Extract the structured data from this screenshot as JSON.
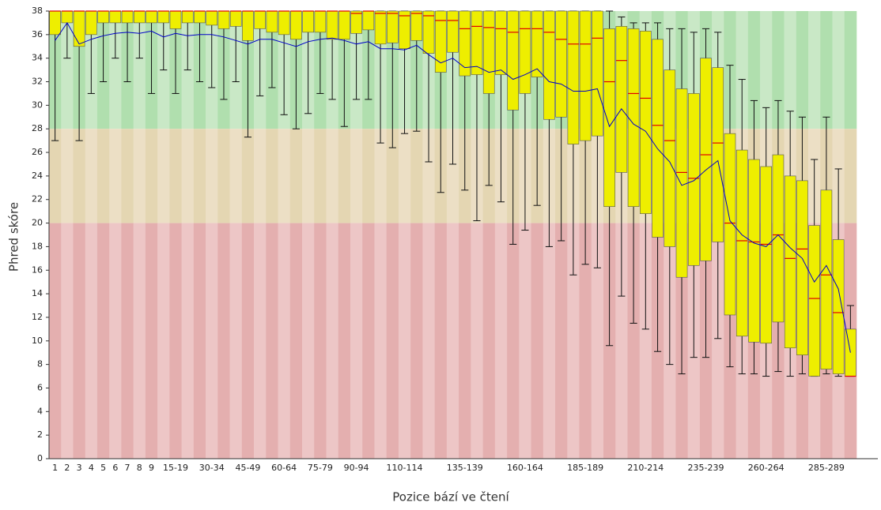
{
  "chart_data": {
    "type": "boxplot",
    "y_label": "Phred skóre",
    "x_label": "Pozice bází ve čtení",
    "categories": [
      "1",
      "2",
      "3",
      "4",
      "5",
      "6",
      "7",
      "8",
      "9",
      null,
      "15-19",
      null,
      null,
      "30-34",
      null,
      null,
      "45-49",
      null,
      null,
      "60-64",
      null,
      null,
      "75-79",
      null,
      null,
      "90-94",
      null,
      null,
      null,
      "110-114",
      null,
      null,
      null,
      null,
      "135-139",
      null,
      null,
      null,
      null,
      "160-164",
      null,
      null,
      null,
      null,
      "185-189",
      null,
      null,
      null,
      null,
      "210-214",
      null,
      null,
      null,
      null,
      "235-239",
      null,
      null,
      null,
      null,
      "260-264",
      null,
      null,
      null,
      null,
      "285-289",
      null,
      null
    ],
    "q1": [
      36,
      37,
      35,
      36,
      37,
      37,
      37,
      37,
      37,
      37,
      36.5,
      37,
      37,
      36.8,
      36.5,
      36.7,
      35.5,
      36.5,
      36.2,
      36,
      35.6,
      36.2,
      36.2,
      35.6,
      35.6,
      36.1,
      36.4,
      35.2,
      35.3,
      34.8,
      35.5,
      34.4,
      32.8,
      34.5,
      32.5,
      32.6,
      31,
      32.6,
      29.6,
      31,
      32.4,
      28.8,
      29,
      26.7,
      27,
      27.4,
      21.4,
      24.3,
      21.4,
      20.8,
      18.8,
      18,
      15.4,
      16.4,
      16.8,
      18.4,
      12.2,
      10.4,
      9.9,
      9.8,
      11.6,
      9.4,
      8.8,
      7,
      7.6,
      7.2,
      7
    ],
    "median": [
      38,
      38,
      38,
      38,
      38,
      38,
      38,
      38,
      38,
      38,
      38,
      38,
      38,
      38,
      38,
      38,
      38,
      38,
      38,
      38,
      38,
      38,
      38,
      38,
      38,
      37.8,
      38,
      37.8,
      37.8,
      37.6,
      37.8,
      37.6,
      37.2,
      37.2,
      36.5,
      36.7,
      36.6,
      36.5,
      36.2,
      36.5,
      36.5,
      36.2,
      35.6,
      35.2,
      35.2,
      35.7,
      32,
      33.8,
      31,
      30.6,
      28.3,
      27,
      24.3,
      23.8,
      25.8,
      26.8,
      20,
      18.5,
      18.4,
      18.2,
      19,
      17,
      17.8,
      13.6,
      15.6,
      12.4,
      7
    ],
    "q3": [
      38,
      38,
      38,
      38,
      38,
      38,
      38,
      38,
      38,
      38,
      38,
      38,
      38,
      38,
      38,
      38,
      38,
      38,
      38,
      38,
      38,
      38,
      38,
      38,
      38,
      38,
      38,
      38,
      38,
      38,
      38,
      38,
      38,
      38,
      38,
      38,
      38,
      38,
      38,
      38,
      38,
      38,
      38,
      38,
      38,
      38,
      36.5,
      36.7,
      36.5,
      36.3,
      35.6,
      33,
      31.4,
      31,
      34,
      33.2,
      27.6,
      26.2,
      25.4,
      24.8,
      25.8,
      24,
      23.6,
      19.8,
      22.8,
      18.6,
      11
    ],
    "whisker_low": [
      27,
      34,
      27,
      31,
      32,
      34,
      32,
      34,
      31,
      33,
      31,
      33,
      32,
      31.5,
      30.5,
      32,
      27.3,
      30.8,
      31.5,
      29.2,
      28,
      29.3,
      31,
      30.5,
      28.2,
      30.5,
      30.5,
      26.8,
      26.4,
      27.6,
      27.8,
      25.2,
      22.6,
      25,
      22.8,
      20.2,
      23.2,
      21.8,
      18.2,
      19.4,
      21.5,
      18,
      18.5,
      15.6,
      16.5,
      16.2,
      9.6,
      13.8,
      11.5,
      11,
      9.1,
      8,
      7.2,
      8.6,
      8.6,
      10.2,
      7.8,
      7.2,
      7.2,
      7,
      7.4,
      7,
      7.2,
      7,
      7.2,
      7,
      7
    ],
    "whisker_high": [
      38,
      38,
      38,
      38,
      38,
      38,
      38,
      38,
      38,
      38,
      38,
      38,
      38,
      38,
      38,
      38,
      38,
      38,
      38,
      38,
      38,
      38,
      38,
      38,
      38,
      38,
      38,
      38,
      38,
      38,
      38,
      38,
      38,
      38,
      38,
      38,
      38,
      38,
      38,
      38,
      38,
      38,
      38,
      38,
      38,
      38,
      38,
      37.5,
      37,
      37,
      37,
      36.5,
      36.5,
      36.2,
      36.5,
      36.2,
      33.4,
      32.2,
      30.4,
      29.8,
      30.4,
      29.5,
      29,
      25.4,
      29,
      24.6,
      13
    ],
    "mean": [
      35.5,
      37,
      35.2,
      35.6,
      35.9,
      36.1,
      36.2,
      36.1,
      36.3,
      35.8,
      36.1,
      35.9,
      36,
      36,
      35.8,
      35.5,
      35.2,
      35.6,
      35.6,
      35.3,
      35,
      35.4,
      35.6,
      35.7,
      35.5,
      35.2,
      35.4,
      34.8,
      34.8,
      34.7,
      35.1,
      34.3,
      33.6,
      34,
      33.2,
      33.3,
      32.8,
      33,
      32.2,
      32.6,
      33.1,
      32,
      31.8,
      31.2,
      31.2,
      31.4,
      28.2,
      29.7,
      28.4,
      27.8,
      26.3,
      25.2,
      23.2,
      23.6,
      24.5,
      25.3,
      20.2,
      19,
      18.3,
      18,
      19,
      17.9,
      17,
      15,
      16.4,
      14.4,
      9
    ],
    "box_color": "#eeee00",
    "median_color": "#e00000",
    "mean_color": "#0000c8",
    "bands": [
      {
        "from": 28,
        "to": 38,
        "colors": [
          "#b0dfae",
          "#c9e8c6"
        ]
      },
      {
        "from": 20,
        "to": 28,
        "colors": [
          "#e4d6b2",
          "#ecdfc5"
        ]
      },
      {
        "from": 0,
        "to": 20,
        "colors": [
          "#e4afaf",
          "#edc6c6"
        ]
      }
    ],
    "ylim": [
      0,
      38
    ],
    "yticks": [
      0,
      2,
      4,
      6,
      8,
      10,
      12,
      14,
      16,
      18,
      20,
      22,
      24,
      26,
      28,
      30,
      32,
      34,
      36,
      38
    ]
  }
}
